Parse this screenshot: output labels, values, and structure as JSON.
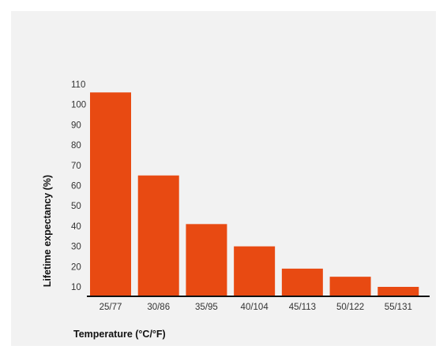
{
  "chart_data": {
    "type": "bar",
    "title": "",
    "xlabel": "Temperature (°C/°F)",
    "ylabel": "Lifetime expectancy (%)",
    "categories": [
      "25/77",
      "30/86",
      "35/95",
      "40/104",
      "45/113",
      "50/122",
      "55/131"
    ],
    "values": [
      106,
      65,
      41,
      30,
      19,
      15,
      10
    ],
    "y_ticks": [
      10,
      20,
      30,
      40,
      50,
      60,
      70,
      80,
      90,
      100,
      110
    ],
    "ylim": [
      5,
      110
    ],
    "grid": false,
    "legend": "none",
    "bar_color": "#e84a12",
    "axis_color": "#111111",
    "background_color": "#f2f2f2"
  }
}
